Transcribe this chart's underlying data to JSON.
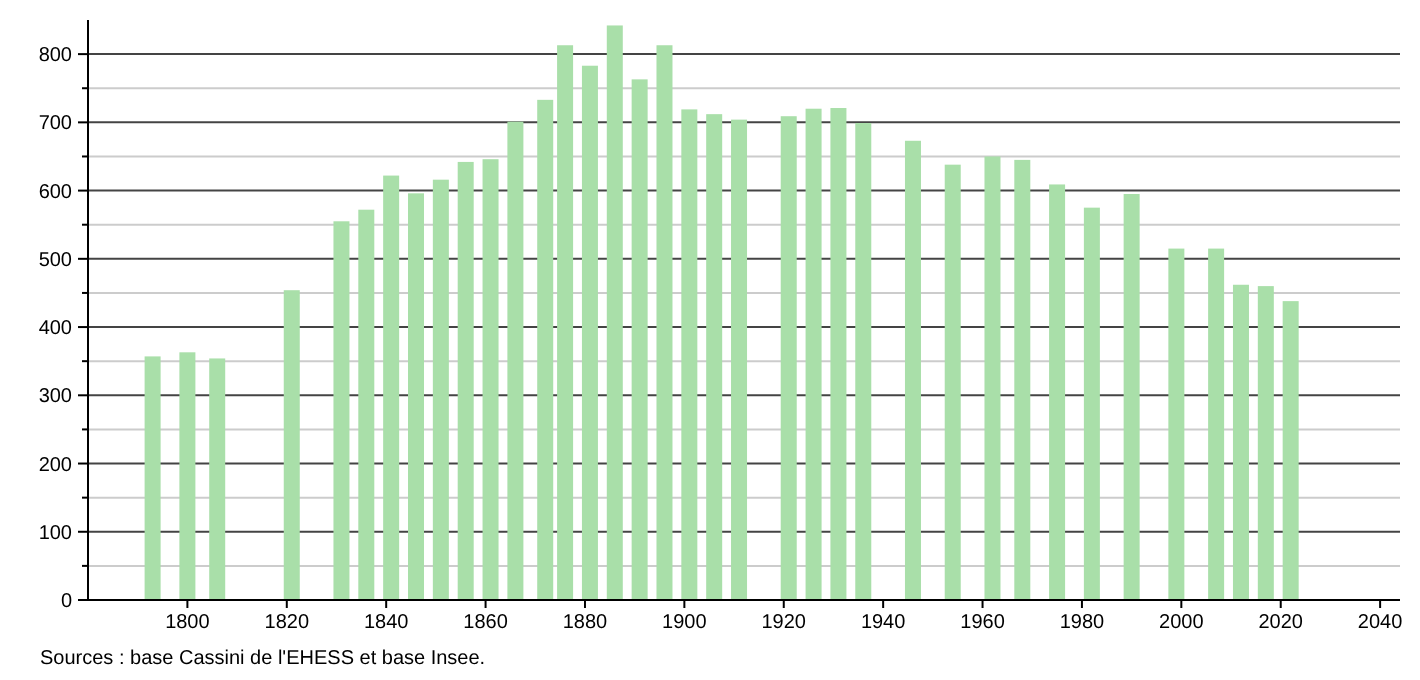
{
  "chart_data": {
    "type": "bar",
    "x": [
      1793,
      1800,
      1806,
      1821,
      1831,
      1836,
      1841,
      1846,
      1851,
      1856,
      1861,
      1866,
      1872,
      1876,
      1881,
      1886,
      1891,
      1896,
      1901,
      1906,
      1911,
      1921,
      1926,
      1931,
      1936,
      1946,
      1954,
      1962,
      1968,
      1975,
      1982,
      1990,
      1999,
      2007,
      2012,
      2017,
      2022
    ],
    "values": [
      357,
      363,
      354,
      454,
      555,
      572,
      622,
      596,
      616,
      642,
      646,
      701,
      733,
      813,
      783,
      842,
      763,
      813,
      719,
      712,
      704,
      709,
      720,
      721,
      699,
      673,
      638,
      650,
      645,
      609,
      575,
      595,
      515,
      515,
      462,
      460,
      438
    ],
    "color": "#a9dfa9",
    "xlim": [
      1780,
      2044
    ],
    "xticks": [
      1800,
      1820,
      1840,
      1860,
      1880,
      1900,
      1920,
      1940,
      1960,
      1980,
      2000,
      2020,
      2040
    ],
    "ylim": [
      0,
      850
    ],
    "yticks": [
      0,
      {
        "value": 50,
        "label": null
      },
      100,
      {
        "value": 150,
        "label": null
      },
      200,
      {
        "value": 250,
        "label": null
      },
      300,
      {
        "value": 350,
        "label": null
      },
      400,
      {
        "value": 450,
        "label": null
      },
      500,
      {
        "value": 550,
        "label": null
      },
      600,
      {
        "value": 650,
        "label": null
      },
      700,
      {
        "value": 750,
        "label": null
      },
      800
    ],
    "grid": "y",
    "annotations": [
      "Sources : base Cassini de l'EHESS et base Insee."
    ]
  }
}
